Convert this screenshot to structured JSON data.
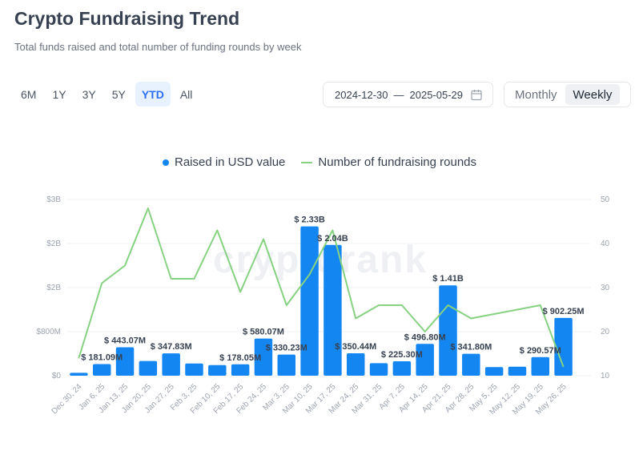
{
  "header": {
    "title": "Crypto Fundraising Trend",
    "subtitle": "Total funds raised and total number of funding rounds by week"
  },
  "ranges": [
    "6M",
    "1Y",
    "3Y",
    "5Y",
    "YTD",
    "All"
  ],
  "active_range": "YTD",
  "date_range": {
    "start": "2024-12-30",
    "separator": "—",
    "end": "2025-05-29"
  },
  "period": {
    "options": [
      "Monthly",
      "Weekly"
    ],
    "active": "Weekly"
  },
  "legend": {
    "bars": "Raised in USD value",
    "line": "Number of fundraising rounds"
  },
  "colors": {
    "bar": "#1386f2",
    "line": "#86d281",
    "accent": "#2b6ff2"
  },
  "watermark": "cryptorank",
  "chart_data": {
    "type": "bar",
    "categories": [
      "Dec 30, 24",
      "Jan 6, 25",
      "Jan 13, 25",
      "Jan 20, 25",
      "Jan 27, 25",
      "Feb 3, 25",
      "Feb 10, 25",
      "Feb 17, 25",
      "Feb 24, 25",
      "Mar 3, 25",
      "Mar 10, 25",
      "Mar 17, 25",
      "Mar 24, 25",
      "Mar 31, 25",
      "Apr 7, 25",
      "Apr 14, 25",
      "Apr 21, 25",
      "Apr 28, 25",
      "May 5, 25",
      "May 12, 25",
      "May 19, 25",
      "May 26, 25"
    ],
    "series": [
      {
        "name": "Raised in USD value",
        "type": "bar",
        "axis": "left",
        "values": [
          45000000,
          181090000,
          443070000,
          230000000,
          347830000,
          190000000,
          165000000,
          178050000,
          580070000,
          330230000,
          2330000000,
          2040000000,
          350440000,
          195000000,
          225300000,
          496800000,
          1410000000,
          341800000,
          135000000,
          140000000,
          290570000,
          902250000
        ],
        "labels": [
          "",
          "$ 181.09M",
          "$ 443.07M",
          "",
          "$ 347.83M",
          "",
          "",
          "$ 178.05M",
          "$ 580.07M",
          "$ 330.23M",
          "$ 2.33B",
          "$ 2.04B",
          "$ 350.44M",
          "",
          "$ 225.30M",
          "$ 496.80M",
          "$ 1.41B",
          "$ 341.80M",
          "",
          "",
          "$ 290.57M",
          "$ 902.25M"
        ]
      },
      {
        "name": "Number of fundraising rounds",
        "type": "line",
        "axis": "right",
        "values": [
          14,
          31,
          35,
          48,
          32,
          32,
          43,
          29,
          41,
          26,
          33,
          43,
          23,
          26,
          26,
          20,
          26,
          23,
          24,
          25,
          26,
          12
        ]
      }
    ],
    "y_left": {
      "ticks": [
        "$0",
        "$800M",
        "$2B",
        "$2B",
        "$3B"
      ],
      "lim": [
        0,
        2750000000
      ]
    },
    "y_right": {
      "ticks": [
        "10",
        "20",
        "30",
        "40",
        "50"
      ],
      "lim": [
        10,
        50
      ]
    },
    "grid": true,
    "legend_position": "top-center"
  }
}
